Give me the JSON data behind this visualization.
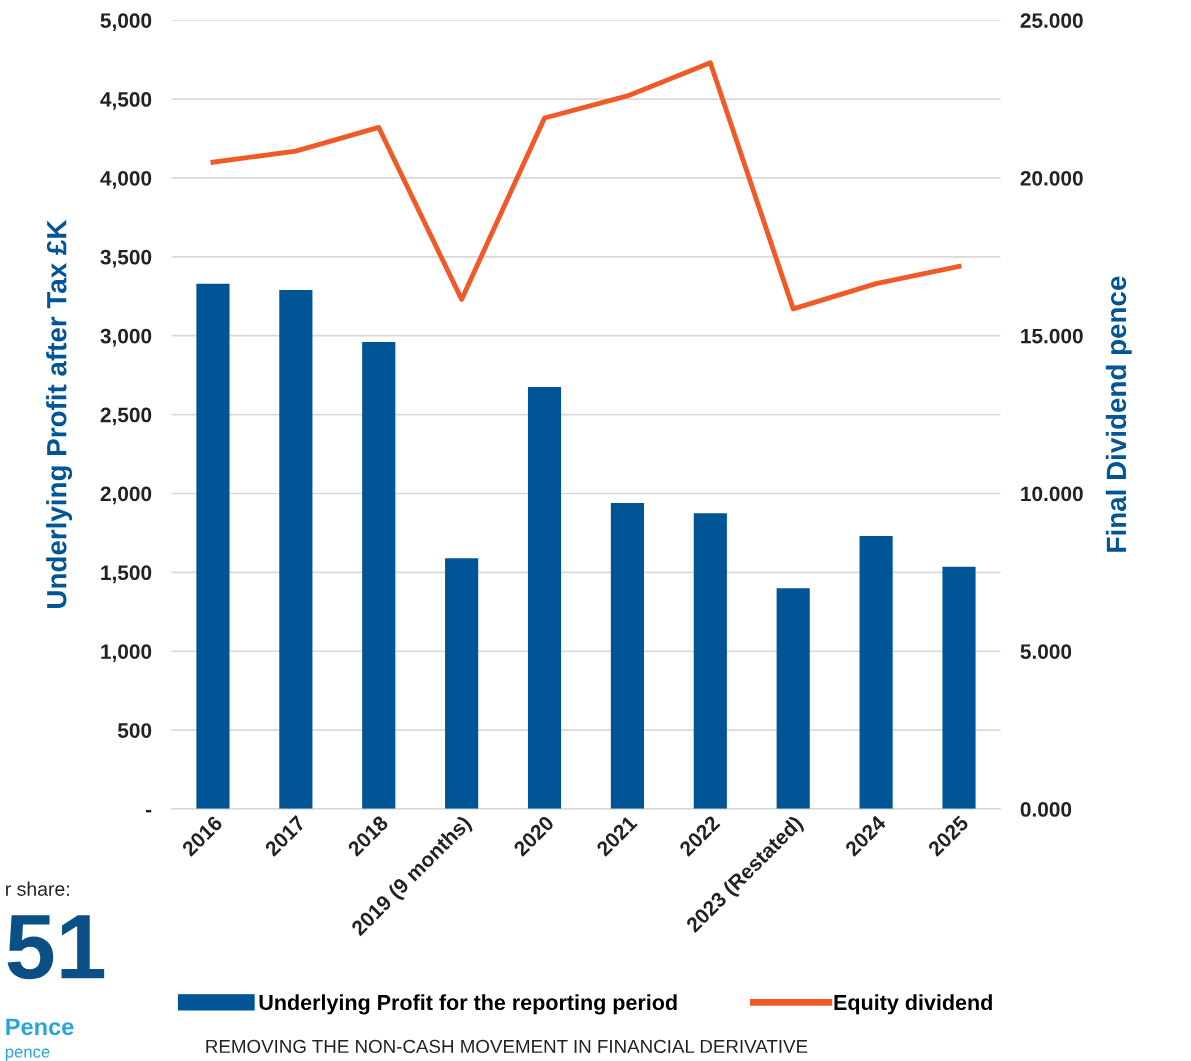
{
  "chart_data": {
    "type": "bar",
    "ylabel": "Underlying Profit after Tax £K",
    "y2label": "Final Dividend pence",
    "categories": [
      "2016",
      "2017",
      "2018",
      "2019 (9 months)",
      "2020",
      "2021",
      "2022",
      "2023 (Restated)",
      "2024",
      "2025"
    ],
    "series": [
      {
        "name": "Underlying Profit for the reporting period",
        "color": "#005596",
        "values": [
          3330,
          3290,
          2960,
          1590,
          2675,
          1940,
          1875,
          1400,
          1730,
          1535
        ]
      },
      {
        "name": "Equity dividend",
        "color": "#f05a28",
        "type": "line",
        "axis": "y2",
        "values": [
          20.5,
          20.85,
          21.6,
          16.15,
          21.9,
          22.6,
          23.65,
          15.85,
          16.65,
          17.2
        ]
      }
    ],
    "ylim": [
      0,
      5000
    ],
    "yticks": [
      {
        "value": 0,
        "label": "-"
      },
      {
        "value": 500,
        "label": "500"
      },
      {
        "value": 1000,
        "label": "1,000"
      },
      {
        "value": 1500,
        "label": "1,500"
      },
      {
        "value": 2000,
        "label": "2,000"
      },
      {
        "value": 2500,
        "label": "2,500"
      },
      {
        "value": 3000,
        "label": "3,000"
      },
      {
        "value": 3500,
        "label": "3,500"
      },
      {
        "value": 4000,
        "label": "4,000"
      },
      {
        "value": 4500,
        "label": "4,500"
      },
      {
        "value": 5000,
        "label": "5,000"
      }
    ],
    "y2lim": [
      0,
      25
    ],
    "y2ticks": [
      {
        "value": 0,
        "label": "0.000"
      },
      {
        "value": 5,
        "label": "5.000"
      },
      {
        "value": 10,
        "label": "10.000"
      },
      {
        "value": 15,
        "label": "15.000"
      },
      {
        "value": 20,
        "label": "20.000"
      },
      {
        "value": 25,
        "label": "25.000"
      }
    ],
    "grid": "y",
    "legend": "bottom",
    "marker": "none",
    "line_style": "solid",
    "annotations": [
      "REMOVING THE NON-CASH MOVEMENT IN FINANCIAL DERIVATIVE",
      "r share:",
      "51",
      "Pence",
      "pence"
    ]
  }
}
